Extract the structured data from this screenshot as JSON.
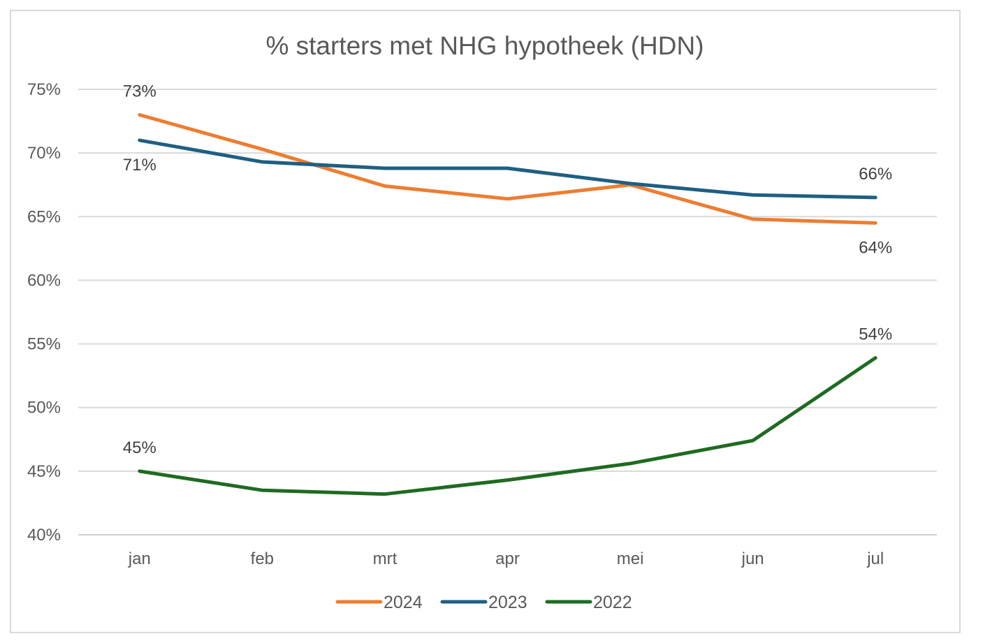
{
  "chart_data": {
    "type": "line",
    "title": "% starters met NHG hypotheek (HDN)",
    "xlabel": "",
    "ylabel": "",
    "categories": [
      "jan",
      "feb",
      "mrt",
      "apr",
      "mei",
      "jun",
      "jul"
    ],
    "ylim": [
      40,
      75
    ],
    "yticks": [
      40,
      45,
      50,
      55,
      60,
      65,
      70,
      75
    ],
    "ytick_labels": [
      "40%",
      "45%",
      "50%",
      "55%",
      "60%",
      "65%",
      "70%",
      "75%"
    ],
    "grid": true,
    "legend_position": "bottom",
    "series": [
      {
        "name": "2024",
        "color": "#ed7d31",
        "values": [
          73.0,
          70.3,
          67.4,
          66.4,
          67.5,
          64.8,
          64.5
        ],
        "data_labels": [
          {
            "index": 0,
            "text": "73%",
            "placement": "above"
          },
          {
            "index": 6,
            "text": "64%",
            "placement": "below"
          }
        ]
      },
      {
        "name": "2023",
        "color": "#1f5f82",
        "values": [
          71.0,
          69.3,
          68.8,
          68.8,
          67.6,
          66.7,
          66.5
        ],
        "data_labels": [
          {
            "index": 0,
            "text": "71%",
            "placement": "below"
          },
          {
            "index": 6,
            "text": "66%",
            "placement": "above"
          }
        ]
      },
      {
        "name": "2022",
        "color": "#1e6b22",
        "values": [
          45.0,
          43.5,
          43.2,
          44.3,
          45.6,
          47.4,
          53.9
        ],
        "data_labels": [
          {
            "index": 0,
            "text": "45%",
            "placement": "above"
          },
          {
            "index": 6,
            "text": "54%",
            "placement": "above"
          }
        ]
      }
    ]
  }
}
